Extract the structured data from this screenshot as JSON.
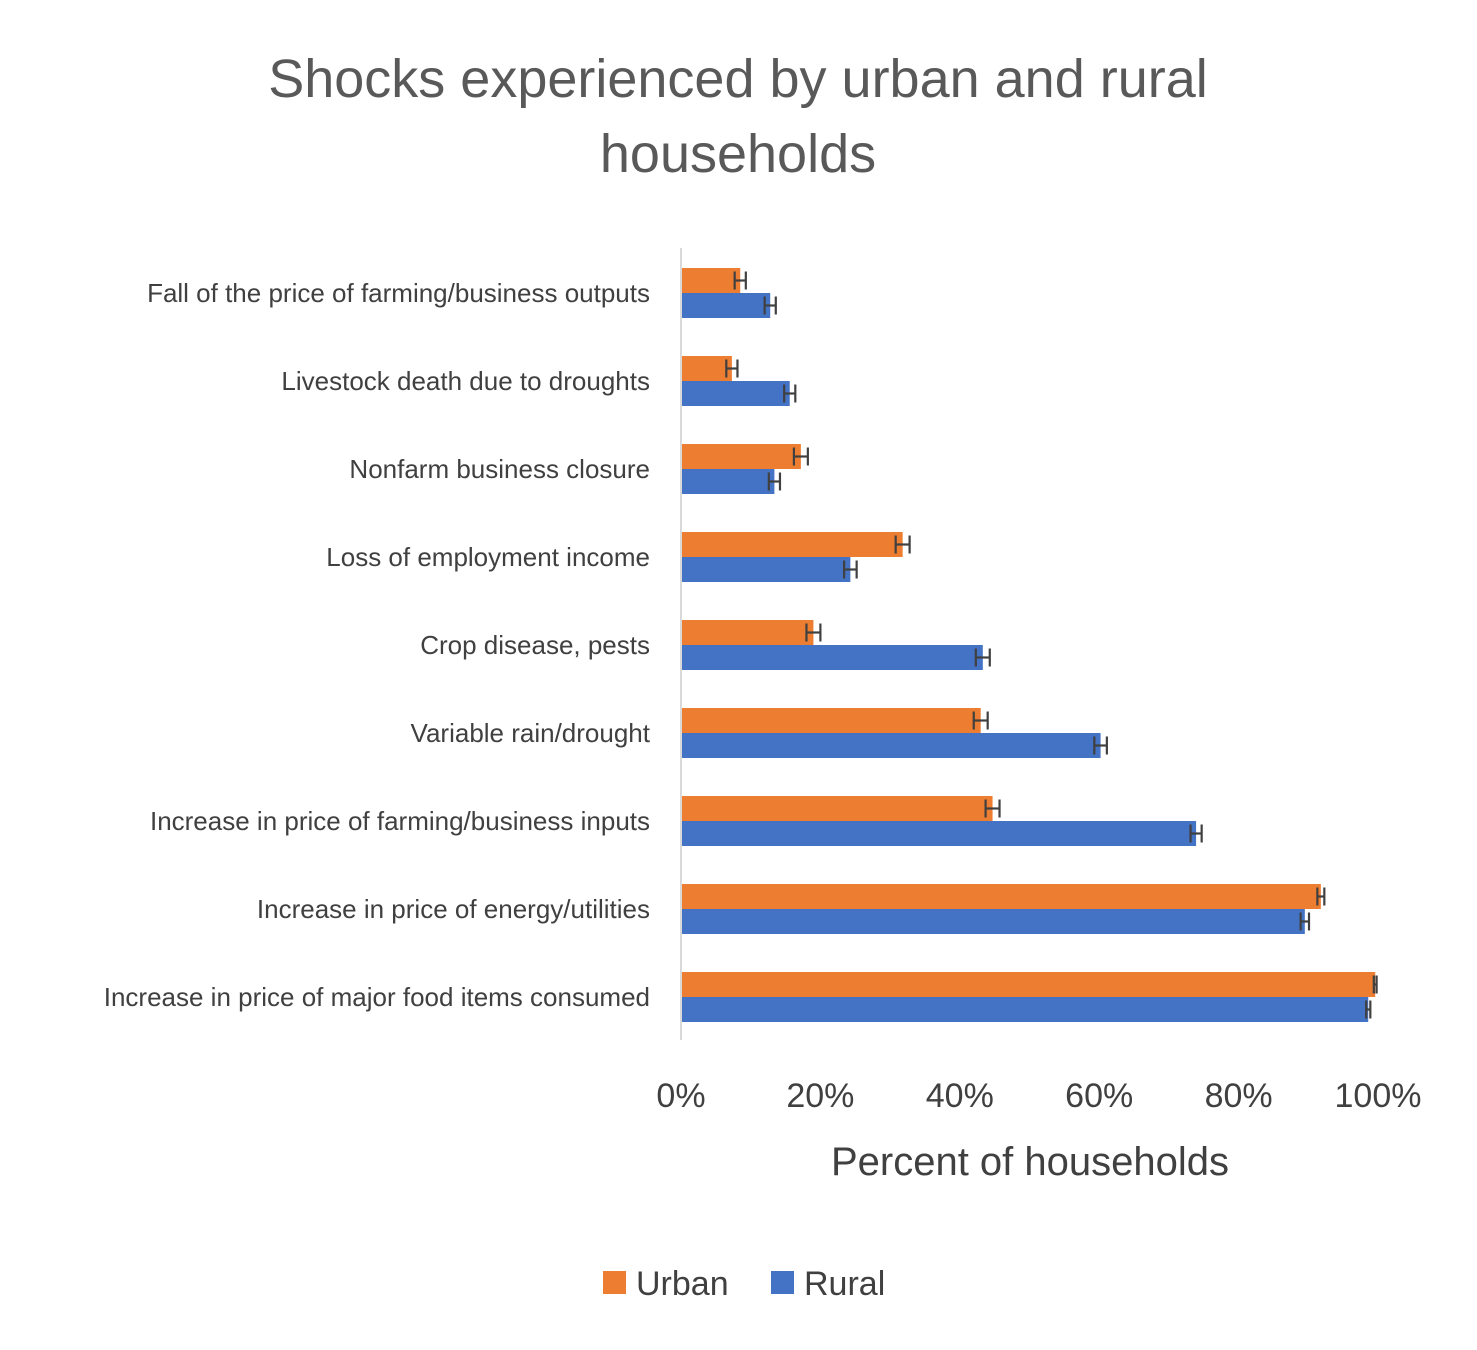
{
  "chart_data": {
    "type": "bar",
    "orientation": "horizontal",
    "title_lines": [
      "Shocks experienced by urban and rural",
      "households"
    ],
    "xlabel": "Percent of households",
    "ylabel": "",
    "xlim": [
      0,
      100
    ],
    "x_ticks": [
      0,
      20,
      40,
      60,
      80,
      100
    ],
    "x_tick_labels": [
      "0%",
      "20%",
      "40%",
      "60%",
      "80%",
      "100%"
    ],
    "grid": false,
    "legend_position": "bottom",
    "categories": [
      "Fall of the price of farming/business outputs",
      "Livestock death due to droughts",
      "Nonfarm business closure",
      "Loss of employment  income",
      "Crop disease, pests",
      "Variable rain/drought",
      "Increase in price of farming/business inputs",
      "Increase in price of energy/utilities",
      "Increase in price of major food items consumed"
    ],
    "series": [
      {
        "name": "Urban",
        "color": "#ED7D31",
        "values": [
          8.5,
          7.3,
          17.2,
          31.8,
          19.0,
          43.0,
          44.7,
          91.8,
          99.6
        ],
        "error": [
          0.8,
          0.8,
          1.0,
          1.0,
          1.0,
          1.0,
          1.0,
          0.5,
          0.2
        ]
      },
      {
        "name": "Rural",
        "color": "#4472C4",
        "values": [
          12.8,
          15.6,
          13.4,
          24.3,
          43.3,
          60.2,
          73.9,
          89.5,
          98.6
        ],
        "error": [
          0.8,
          0.8,
          0.8,
          0.9,
          1.0,
          0.9,
          0.8,
          0.6,
          0.3
        ]
      }
    ]
  }
}
